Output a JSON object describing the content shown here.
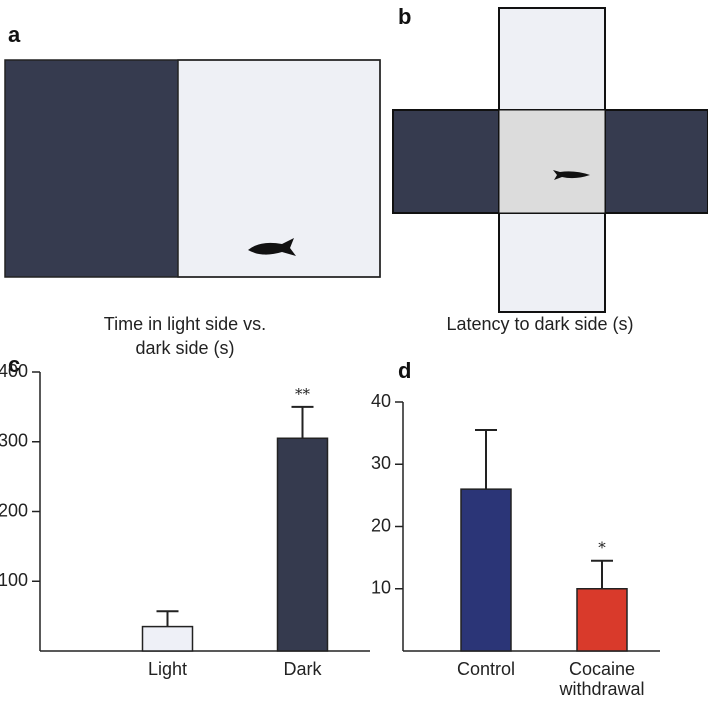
{
  "panel_labels": [
    "a",
    "b",
    "c",
    "d"
  ],
  "chart_data": [
    {
      "type": "bar",
      "title": "Time in light side vs. dark side (s)",
      "categories": [
        "Light",
        "Dark"
      ],
      "values": [
        35,
        305
      ],
      "errors": [
        22,
        45
      ],
      "colors": [
        "#eef0f7",
        "#353a4e"
      ],
      "ylim": [
        0,
        400
      ],
      "yticks": [
        100,
        200,
        300,
        400
      ],
      "annotations": [
        {
          "text": "**",
          "x": "Dark"
        }
      ]
    },
    {
      "type": "bar",
      "title": "Latency to dark side (s)",
      "categories": [
        "Control",
        "Cocaine withdrawal"
      ],
      "values": [
        26,
        10
      ],
      "errors": [
        9.5,
        4.5
      ],
      "colors": [
        "#2b3577",
        "#d93a2b"
      ],
      "ylim": [
        0,
        40
      ],
      "yticks": [
        10,
        20,
        30,
        40
      ],
      "annotations": [
        {
          "text": "*",
          "x": "Cocaine withdrawal"
        }
      ]
    }
  ]
}
